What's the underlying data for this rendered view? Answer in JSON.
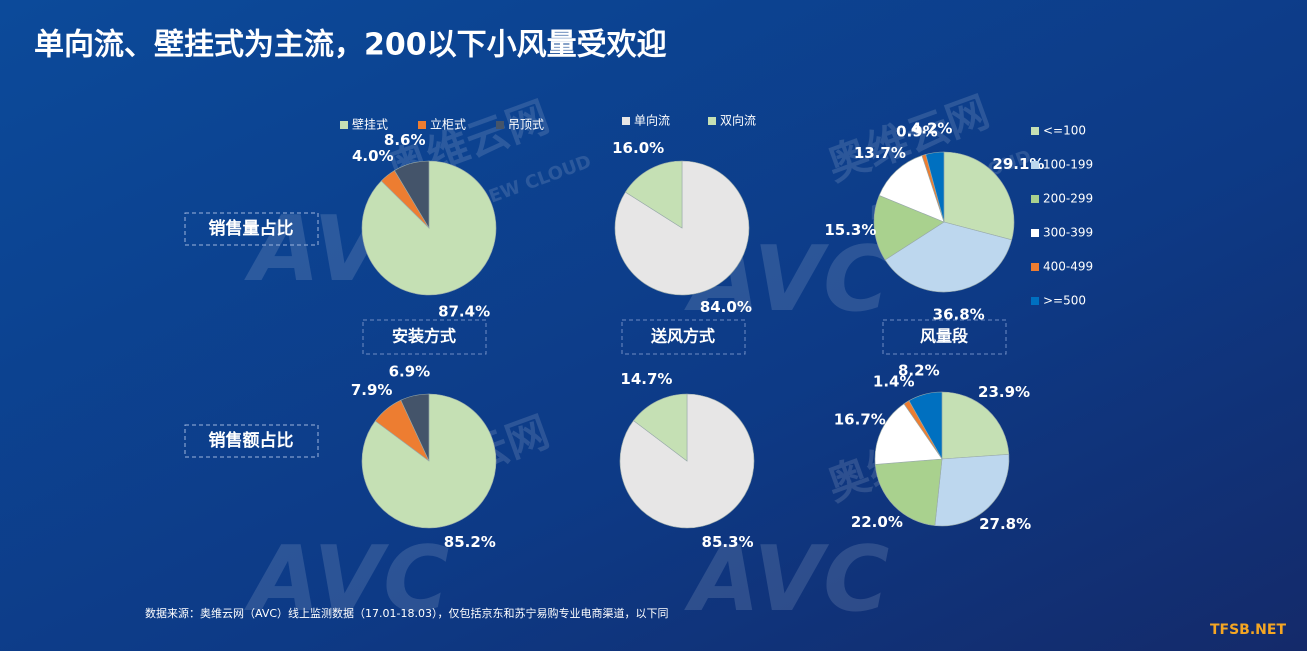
{
  "title": "单向流、壁挂式为主流，200以下小风量受欢迎",
  "row_labels": [
    "销售量占比",
    "销售额占比"
  ],
  "column_labels": [
    "安装方式",
    "送风方式",
    "风量段"
  ],
  "source": "数据来源：奥维云网（AVC）线上监测数据（17.01-18.03），仅包括京东和苏宁易购专业电商渠道，以下同",
  "watermark": {
    "logo": "AVC",
    "cn": "奥维云网",
    "en": "ALL VIEW CLOUD"
  },
  "corner_mark": "TFSB.NET",
  "chart_data": [
    {
      "type": "pie",
      "categories": [
        "壁挂式",
        "立柜式",
        "吊顶式"
      ],
      "values": [
        87.4,
        4.0,
        8.6
      ],
      "value_labels": [
        "87.4%",
        "4.0%",
        "8.6%"
      ],
      "colors": [
        "#c5e0b4",
        "#ed7d31",
        "#44546a"
      ],
      "legend": "top"
    },
    {
      "type": "pie",
      "categories": [
        "单向流",
        "双向流"
      ],
      "values": [
        84.0,
        16.0
      ],
      "value_labels": [
        "84.0%",
        "16.0%"
      ],
      "colors": [
        "#e7e6e6",
        "#c5e0b4"
      ],
      "legend": "top"
    },
    {
      "type": "pie",
      "categories": [
        "<=100",
        "100-199",
        "200-299",
        "300-399",
        "400-499",
        ">=500"
      ],
      "values": [
        29.1,
        36.8,
        15.3,
        13.7,
        0.9,
        4.2
      ],
      "value_labels": [
        "29.1%",
        "36.8%",
        "15.3%",
        "13.7%",
        "0.9%",
        "4.2%"
      ],
      "colors": [
        "#c5e0b4",
        "#bdd7ee",
        "#a9d18e",
        "#ffffff",
        "#ed7d31",
        "#0070c0"
      ],
      "legend": "right"
    },
    {
      "type": "pie",
      "values": [
        85.2,
        7.9,
        6.9
      ],
      "value_labels": [
        "85.2%",
        "7.9%",
        "6.9%"
      ],
      "colors": [
        "#c5e0b4",
        "#ed7d31",
        "#44546a"
      ]
    },
    {
      "type": "pie",
      "values": [
        85.3,
        14.7
      ],
      "value_labels": [
        "85.3%",
        "14.7%"
      ],
      "colors": [
        "#e7e6e6",
        "#c5e0b4"
      ]
    },
    {
      "type": "pie",
      "values": [
        23.9,
        27.8,
        22.0,
        16.7,
        1.4,
        8.2
      ],
      "value_labels": [
        "23.9%",
        "27.8%",
        "22.0%",
        "16.7%",
        "1.4%",
        "8.2%"
      ],
      "colors": [
        "#c5e0b4",
        "#bdd7ee",
        "#a9d18e",
        "#ffffff",
        "#ed7d31",
        "#0070c0"
      ]
    }
  ]
}
